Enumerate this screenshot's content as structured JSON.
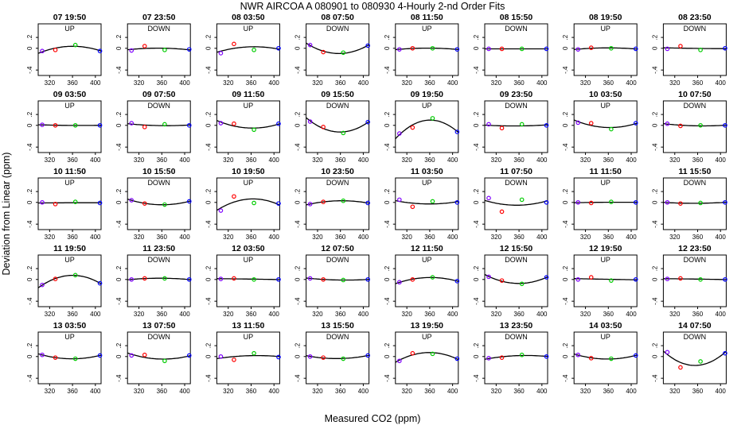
{
  "figure": {
    "title": "NWR   AIRCOA A   080901 to 080930   4-Hourly 2-nd Order Fits",
    "xlabel": "Measured CO2 (ppm)",
    "ylabel": "Deviation from Linear (ppm)"
  },
  "colors": {
    "axis": "#000000",
    "fit": "#000000",
    "marker_1": "#7f00ff",
    "marker_2": "#ff0000",
    "marker_3": "#00cc00",
    "marker_4": "#0000ff"
  },
  "chart_data": {
    "type": "scatter",
    "layout_grid": "5 rows x 8 columns of small panels",
    "xlim": [
      300,
      410
    ],
    "ylim": [
      -0.5,
      0.45
    ],
    "xticks": [
      320,
      360,
      400
    ],
    "yticks": [
      -0.4,
      0,
      0.2
    ],
    "marker_x": [
      307,
      330,
      365,
      408
    ],
    "fit": "2nd-order polynomial curve through the four points",
    "panels": [
      {
        "title": "07 19:50",
        "mode": "UP",
        "y": [
          -0.05,
          -0.03,
          0.06,
          -0.05
        ]
      },
      {
        "title": "07 23:50",
        "mode": "DOWN",
        "y": [
          -0.04,
          0.04,
          -0.03,
          -0.02
        ]
      },
      {
        "title": "08 03:50",
        "mode": "UP",
        "y": [
          -0.09,
          0.08,
          -0.03,
          0.0
        ]
      },
      {
        "title": "08 07:50",
        "mode": "DOWN",
        "y": [
          0.06,
          -0.07,
          -0.08,
          0.05
        ]
      },
      {
        "title": "08 11:50",
        "mode": "UP",
        "y": [
          -0.02,
          0.0,
          0.0,
          -0.02
        ]
      },
      {
        "title": "08 15:50",
        "mode": "DOWN",
        "y": [
          -0.01,
          -0.01,
          -0.01,
          -0.01
        ]
      },
      {
        "title": "08 19:50",
        "mode": "UP",
        "y": [
          -0.02,
          0.01,
          0.0,
          -0.01
        ]
      },
      {
        "title": "08 23:50",
        "mode": "DOWN",
        "y": [
          -0.01,
          0.04,
          -0.03,
          0.0
        ]
      },
      {
        "title": "09 03:50",
        "mode": "UP",
        "y": [
          0.01,
          0.0,
          0.0,
          0.0
        ]
      },
      {
        "title": "09 07:50",
        "mode": "DOWN",
        "y": [
          0.04,
          -0.03,
          0.02,
          0.0
        ]
      },
      {
        "title": "09 11:50",
        "mode": "UP",
        "y": [
          0.04,
          0.03,
          -0.08,
          0.03
        ]
      },
      {
        "title": "09 15:50",
        "mode": "DOWN",
        "y": [
          0.07,
          -0.03,
          -0.14,
          0.06
        ]
      },
      {
        "title": "09 19:50",
        "mode": "UP",
        "y": [
          -0.15,
          -0.04,
          0.13,
          -0.12
        ]
      },
      {
        "title": "09 23:50",
        "mode": "DOWN",
        "y": [
          0.02,
          -0.05,
          0.02,
          0.0
        ]
      },
      {
        "title": "10 03:50",
        "mode": "UP",
        "y": [
          0.05,
          0.04,
          -0.07,
          0.04
        ]
      },
      {
        "title": "10 07:50",
        "mode": "DOWN",
        "y": [
          0.03,
          -0.01,
          0.0,
          0.0
        ]
      },
      {
        "title": "10 11:50",
        "mode": "UP",
        "y": [
          0.0,
          -0.03,
          0.01,
          -0.01
        ]
      },
      {
        "title": "10 15:50",
        "mode": "DOWN",
        "y": [
          0.04,
          -0.02,
          -0.04,
          0.02
        ]
      },
      {
        "title": "10 19:50",
        "mode": "UP",
        "y": [
          -0.15,
          0.11,
          -0.01,
          -0.02
        ]
      },
      {
        "title": "10 23:50",
        "mode": "DOWN",
        "y": [
          -0.03,
          0.01,
          0.03,
          -0.01
        ]
      },
      {
        "title": "11 03:50",
        "mode": "UP",
        "y": [
          0.05,
          -0.08,
          0.02,
          0.0
        ]
      },
      {
        "title": "11 07:50",
        "mode": "DOWN",
        "y": [
          0.08,
          -0.17,
          0.05,
          0.0
        ]
      },
      {
        "title": "11 11:50",
        "mode": "UP",
        "y": [
          0.0,
          -0.01,
          0.01,
          0.0
        ]
      },
      {
        "title": "11 15:50",
        "mode": "DOWN",
        "y": [
          0.0,
          -0.02,
          -0.01,
          0.0
        ]
      },
      {
        "title": "11 19:50",
        "mode": "UP",
        "y": [
          -0.1,
          0.01,
          0.08,
          -0.07
        ]
      },
      {
        "title": "11 23:50",
        "mode": "DOWN",
        "y": [
          0.0,
          0.02,
          0.02,
          0.0
        ]
      },
      {
        "title": "12 03:50",
        "mode": "UP",
        "y": [
          0.01,
          0.02,
          0.0,
          0.0
        ]
      },
      {
        "title": "12 07:50",
        "mode": "DOWN",
        "y": [
          0.02,
          0.0,
          -0.01,
          0.0
        ]
      },
      {
        "title": "12 11:50",
        "mode": "UP",
        "y": [
          -0.05,
          0.0,
          0.04,
          -0.03
        ]
      },
      {
        "title": "12 15:50",
        "mode": "DOWN",
        "y": [
          0.05,
          -0.02,
          -0.08,
          0.04
        ]
      },
      {
        "title": "12 19:50",
        "mode": "UP",
        "y": [
          0.0,
          0.04,
          -0.02,
          0.0
        ]
      },
      {
        "title": "12 23:50",
        "mode": "DOWN",
        "y": [
          0.01,
          0.02,
          0.0,
          0.0
        ]
      },
      {
        "title": "13 03:50",
        "mode": "UP",
        "y": [
          0.03,
          -0.02,
          -0.04,
          0.02
        ]
      },
      {
        "title": "13 07:50",
        "mode": "DOWN",
        "y": [
          0.02,
          0.03,
          -0.08,
          0.02
        ]
      },
      {
        "title": "13 11:50",
        "mode": "UP",
        "y": [
          0.0,
          -0.06,
          0.06,
          -0.01
        ]
      },
      {
        "title": "13 15:50",
        "mode": "DOWN",
        "y": [
          0.0,
          -0.02,
          -0.04,
          0.02
        ]
      },
      {
        "title": "13 19:50",
        "mode": "UP",
        "y": [
          -0.08,
          0.06,
          0.05,
          -0.04
        ]
      },
      {
        "title": "13 23:50",
        "mode": "DOWN",
        "y": [
          -0.03,
          -0.02,
          0.03,
          0.0
        ]
      },
      {
        "title": "14 03:50",
        "mode": "UP",
        "y": [
          0.03,
          -0.03,
          -0.04,
          0.02
        ]
      },
      {
        "title": "14 07:50",
        "mode": "DOWN",
        "y": [
          0.08,
          -0.2,
          -0.09,
          0.06
        ]
      }
    ]
  }
}
